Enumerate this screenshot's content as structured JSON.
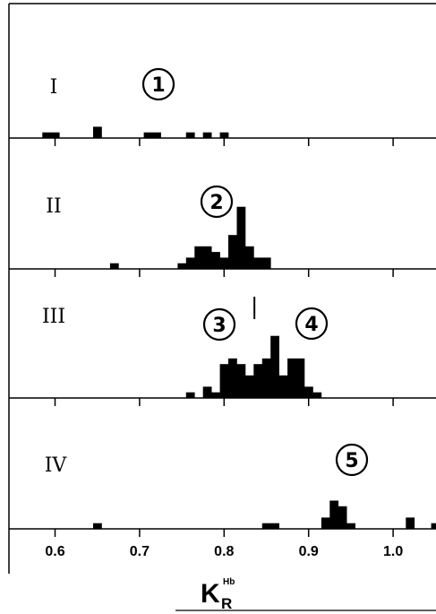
{
  "chart_data": {
    "type": "bar",
    "x_tick_labels": [
      "0.6",
      "0.7",
      "0.8",
      "0.9",
      "1.0"
    ],
    "x_ticks": [
      0.6,
      0.7,
      0.8,
      0.9,
      1.0
    ],
    "xlim": [
      0.58,
      1.065
    ],
    "xlabel": {
      "main": "K",
      "sub": "R",
      "sup": "Hb"
    },
    "bin_width": 0.01,
    "panels": [
      {
        "label": "I",
        "peaks": [
          {
            "number": "1",
            "x": 0.72
          }
        ],
        "bins": [
          {
            "x": 0.59,
            "count": 1
          },
          {
            "x": 0.6,
            "count": 1
          },
          {
            "x": 0.65,
            "count": 2
          },
          {
            "x": 0.71,
            "count": 1
          },
          {
            "x": 0.72,
            "count": 1
          },
          {
            "x": 0.76,
            "count": 1
          },
          {
            "x": 0.78,
            "count": 1
          },
          {
            "x": 0.8,
            "count": 1
          }
        ]
      },
      {
        "label": "II",
        "peaks": [
          {
            "number": "2",
            "x": 0.81
          }
        ],
        "bins": [
          {
            "x": 0.67,
            "count": 1
          },
          {
            "x": 0.75,
            "count": 1
          },
          {
            "x": 0.76,
            "count": 2
          },
          {
            "x": 0.77,
            "count": 4
          },
          {
            "x": 0.78,
            "count": 4
          },
          {
            "x": 0.79,
            "count": 3
          },
          {
            "x": 0.8,
            "count": 2
          },
          {
            "x": 0.81,
            "count": 6
          },
          {
            "x": 0.82,
            "count": 11
          },
          {
            "x": 0.83,
            "count": 4
          },
          {
            "x": 0.84,
            "count": 2
          },
          {
            "x": 0.85,
            "count": 2
          }
        ]
      },
      {
        "label": "III",
        "peaks": [
          {
            "number": "3",
            "x": 0.815
          },
          {
            "number": "4",
            "x": 0.885
          }
        ],
        "marker_x": 0.838,
        "bins": [
          {
            "x": 0.76,
            "count": 1
          },
          {
            "x": 0.78,
            "count": 2
          },
          {
            "x": 0.79,
            "count": 1
          },
          {
            "x": 0.8,
            "count": 6
          },
          {
            "x": 0.81,
            "count": 7
          },
          {
            "x": 0.82,
            "count": 6
          },
          {
            "x": 0.83,
            "count": 4
          },
          {
            "x": 0.84,
            "count": 6
          },
          {
            "x": 0.85,
            "count": 7
          },
          {
            "x": 0.86,
            "count": 11
          },
          {
            "x": 0.87,
            "count": 4
          },
          {
            "x": 0.88,
            "count": 7
          },
          {
            "x": 0.89,
            "count": 7
          },
          {
            "x": 0.9,
            "count": 2
          },
          {
            "x": 0.91,
            "count": 1
          }
        ]
      },
      {
        "label": "IV",
        "peaks": [
          {
            "number": "5",
            "x": 0.93
          }
        ],
        "bins": [
          {
            "x": 0.65,
            "count": 1
          },
          {
            "x": 0.85,
            "count": 1
          },
          {
            "x": 0.86,
            "count": 1
          },
          {
            "x": 0.92,
            "count": 2
          },
          {
            "x": 0.93,
            "count": 5
          },
          {
            "x": 0.94,
            "count": 4
          },
          {
            "x": 0.95,
            "count": 1
          },
          {
            "x": 1.02,
            "count": 2
          },
          {
            "x": 1.05,
            "count": 1
          }
        ]
      }
    ]
  }
}
